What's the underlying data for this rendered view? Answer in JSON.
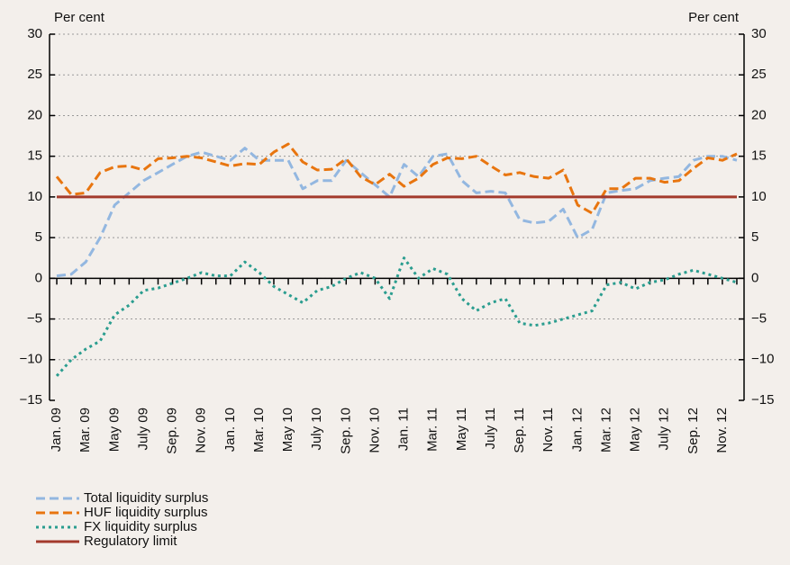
{
  "chart_data": {
    "type": "line",
    "ylabel": "Per cent",
    "y2label": "Per cent",
    "categories": [
      "Jan. 09",
      null,
      "Mar. 09",
      null,
      "May 09",
      null,
      "July 09",
      null,
      "Sep. 09",
      null,
      "Nov. 09",
      null,
      "Jan. 10",
      null,
      "Mar. 10",
      null,
      "May 10",
      null,
      "July 10",
      null,
      "Sep. 10",
      null,
      "Nov. 10",
      null,
      "Jan. 11",
      null,
      "Mar. 11",
      null,
      "May 11",
      null,
      "July 11",
      null,
      "Sep. 11",
      null,
      "Nov. 11",
      null,
      "Jan. 12",
      null,
      "Mar. 12",
      null,
      "May 12",
      null,
      "July 12",
      null,
      "Sep. 12",
      null,
      "Nov. 12",
      null
    ],
    "series": [
      {
        "name": "Total liquidity surplus",
        "color": "#93b7e0",
        "dash": "dashed",
        "values": [
          0.3,
          0.5,
          2,
          5,
          9,
          10.5,
          12,
          13,
          14,
          15,
          15.5,
          15,
          14.5,
          16,
          14.5,
          14.5,
          14.5,
          11,
          12,
          12,
          14.5,
          13,
          11.5,
          10,
          14,
          12.5,
          15,
          15.3,
          12,
          10.5,
          10.7,
          10.5,
          7.2,
          6.8,
          7,
          8.5,
          5,
          6,
          10.5,
          10.8,
          11,
          12,
          12.3,
          12.5,
          14.5,
          15,
          15,
          14.5
        ]
      },
      {
        "name": "HUF liquidity surplus",
        "color": "#e8750f",
        "dash": "dashed",
        "values": [
          12.5,
          10.3,
          10.5,
          13,
          13.7,
          13.8,
          13.3,
          14.7,
          14.8,
          15,
          14.8,
          14.3,
          13.8,
          14.1,
          14,
          15.5,
          16.5,
          14.3,
          13.3,
          13.4,
          14.7,
          12.5,
          11.5,
          12.8,
          11.3,
          12.3,
          14,
          14.8,
          14.7,
          15,
          13.8,
          12.7,
          13,
          12.5,
          12.3,
          13.3,
          9,
          8,
          11,
          11,
          12.3,
          12.3,
          11.8,
          12,
          13.5,
          14.8,
          14.5,
          15.3
        ]
      },
      {
        "name": "FX liquidity surplus",
        "color": "#2a9d8f",
        "dash": "dotted",
        "values": [
          -12,
          -10,
          -8.7,
          -7.7,
          -4.5,
          -3.3,
          -1.5,
          -1.2,
          -0.6,
          0,
          0.7,
          0.3,
          0.3,
          2,
          0.7,
          -1,
          -2,
          -3,
          -1.5,
          -1,
          0,
          0.7,
          0,
          -2.5,
          2.5,
          0,
          1.2,
          0.5,
          -2.5,
          -4,
          -3,
          -2.5,
          -5.5,
          -5.8,
          -5.5,
          -5,
          -4.5,
          -4,
          -0.8,
          -0.5,
          -1.3,
          -0.5,
          -0.2,
          0.5,
          1,
          0.5,
          0,
          -0.5
        ]
      },
      {
        "name": "Regulatory limit",
        "color": "#a33a2c",
        "dash": "solid",
        "values": [
          10,
          10,
          10,
          10,
          10,
          10,
          10,
          10,
          10,
          10,
          10,
          10,
          10,
          10,
          10,
          10,
          10,
          10,
          10,
          10,
          10,
          10,
          10,
          10,
          10,
          10,
          10,
          10,
          10,
          10,
          10,
          10,
          10,
          10,
          10,
          10,
          10,
          10,
          10,
          10,
          10,
          10,
          10,
          10,
          10,
          10,
          10,
          10
        ]
      }
    ],
    "ylim": [
      -15,
      30
    ],
    "y2lim": [
      -15,
      30
    ],
    "yticks": [
      {
        "value": -15,
        "label": "−15"
      },
      {
        "value": -10,
        "label": "−10"
      },
      {
        "value": -5,
        "label": "−5"
      },
      0,
      5,
      10,
      15,
      20,
      25,
      30
    ],
    "grid": true
  }
}
